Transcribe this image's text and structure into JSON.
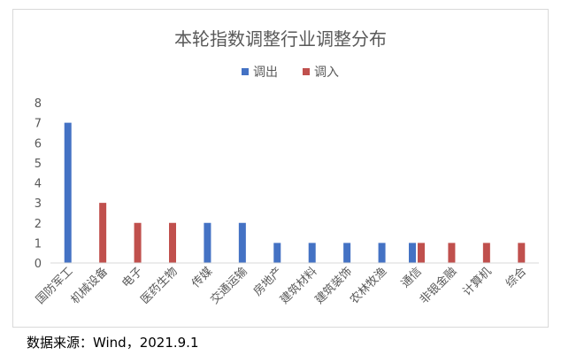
{
  "chart_data": {
    "type": "bar",
    "title": "本轮指数调整行业调整分布",
    "categories": [
      "国防军工",
      "机械设备",
      "电子",
      "医药生物",
      "传媒",
      "交通运输",
      "房地产",
      "建筑材料",
      "建筑装饰",
      "农林牧渔",
      "通信",
      "非银金融",
      "计算机",
      "综合"
    ],
    "series": [
      {
        "name": "调出",
        "color": "#4472c4",
        "values": [
          7,
          0,
          0,
          0,
          2,
          2,
          1,
          1,
          1,
          1,
          1,
          0,
          0,
          0
        ]
      },
      {
        "name": "调入",
        "color": "#c0504d",
        "values": [
          0,
          3,
          2,
          2,
          0,
          0,
          0,
          0,
          0,
          0,
          1,
          1,
          1,
          1
        ]
      }
    ],
    "ylim": [
      0,
      8
    ],
    "yticks": [
      0,
      1,
      2,
      3,
      4,
      5,
      6,
      7,
      8
    ],
    "grid": false,
    "legend_position": "top-center"
  },
  "source": "数据来源：Wind，2021.9.1"
}
